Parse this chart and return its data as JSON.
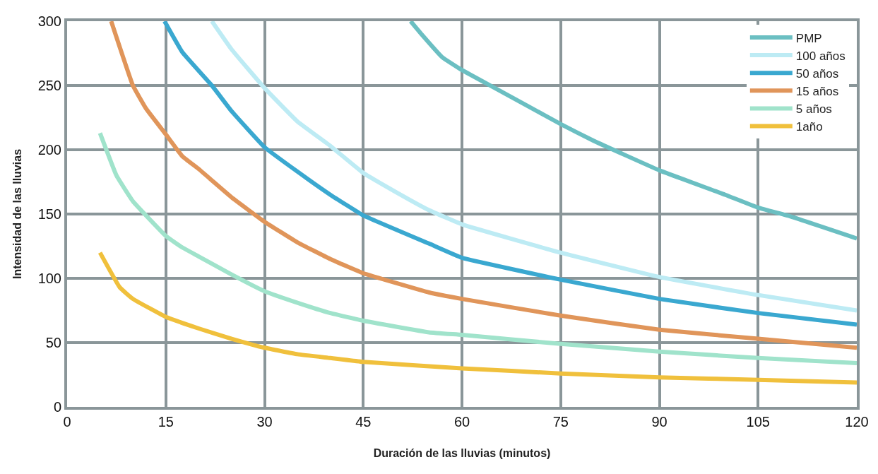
{
  "chart_data": {
    "type": "line",
    "xlabel": "Duración de las lluvias (minutos)",
    "ylabel": "Intensidad de las lluvias",
    "xlim": [
      0,
      120
    ],
    "xticks": [
      0,
      15,
      30,
      45,
      60,
      75,
      90,
      105,
      120
    ],
    "ylim": [
      0,
      300
    ],
    "yticks": [
      0,
      50,
      100,
      150,
      200,
      250,
      300
    ],
    "grid": true,
    "legend": "top right",
    "marker": "none",
    "line_style": "solid",
    "series": [
      {
        "name": "PMP",
        "color": "#6bbfc2",
        "x": [
          52.2,
          54,
          57,
          60,
          65,
          70,
          75,
          80,
          90,
          100,
          105,
          110,
          120
        ],
        "values": [
          300,
          289,
          272,
          262,
          248,
          234,
          220,
          207,
          184,
          165,
          155,
          148,
          131
        ]
      },
      {
        "name": "100 años",
        "color": "#bdebf4",
        "x": [
          22,
          25,
          30,
          35,
          40,
          45,
          50,
          55,
          60,
          75,
          90,
          105,
          120
        ],
        "values": [
          300,
          278,
          248,
          222,
          203,
          182,
          167,
          153,
          142,
          120,
          101,
          87,
          75
        ]
      },
      {
        "name": "50 años",
        "color": "#3aa8d0",
        "x": [
          14.8,
          17.5,
          22,
          25,
          30,
          35,
          40,
          45,
          55,
          60,
          75,
          90,
          105,
          120
        ],
        "values": [
          300,
          276,
          250,
          230,
          202,
          183,
          165,
          149,
          127,
          116,
          99,
          84,
          73,
          64
        ]
      },
      {
        "name": "15 años",
        "color": "#e0955a",
        "x": [
          6.7,
          10,
          12,
          15,
          17.5,
          20,
          25,
          30,
          35,
          40,
          45,
          55,
          60,
          75,
          90,
          105,
          120
        ],
        "values": [
          300,
          250,
          232,
          212,
          195,
          185,
          163,
          144,
          128,
          115,
          104,
          89,
          84,
          71,
          60,
          53,
          46
        ]
      },
      {
        "name": "5 años",
        "color": "#a0e3cb",
        "x": [
          5,
          7.5,
          10,
          15,
          17.5,
          20,
          25,
          30,
          35,
          40,
          45,
          55,
          60,
          75,
          90,
          105,
          120
        ],
        "values": [
          213,
          180,
          160,
          133,
          124,
          117,
          103,
          90,
          81,
          73,
          67,
          58,
          56,
          49,
          43,
          38,
          34
        ]
      },
      {
        "name": "1año",
        "color": "#f0c03c",
        "x": [
          5,
          8,
          10,
          15,
          20,
          25,
          30,
          35,
          40,
          45,
          60,
          75,
          90,
          105,
          120
        ],
        "values": [
          120,
          93,
          84,
          70,
          61,
          53,
          46,
          41,
          38,
          35,
          30,
          26,
          23,
          21,
          19
        ]
      }
    ]
  }
}
